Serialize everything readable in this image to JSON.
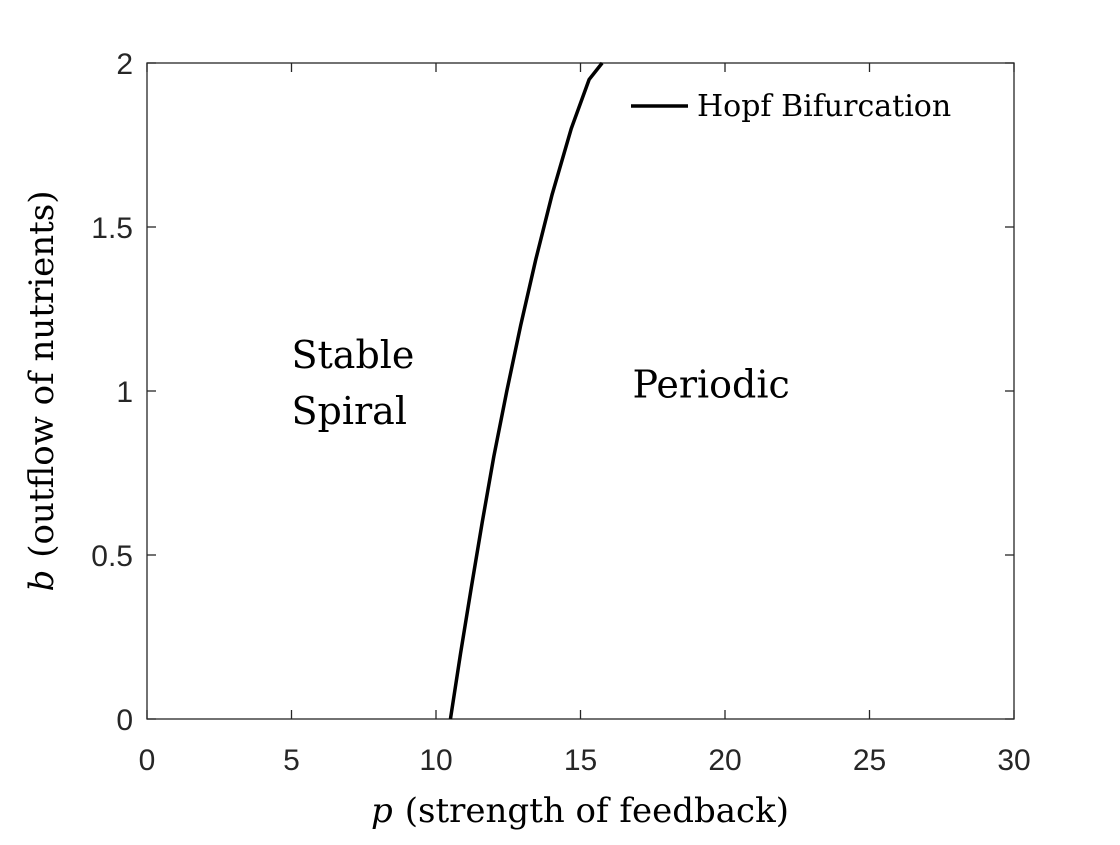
{
  "chart_data": {
    "type": "line",
    "xlabel_var": "p",
    "xlabel_text": "(strength of feedback)",
    "ylabel_var": "b",
    "ylabel_text": "(outflow of nutrients)",
    "xlim": [
      0,
      30
    ],
    "ylim": [
      0,
      2
    ],
    "xticks": [
      0,
      5,
      10,
      15,
      20,
      25,
      30
    ],
    "xtick_labels": [
      "0",
      "5",
      "10",
      "15",
      "20",
      "25",
      "30"
    ],
    "yticks": [
      0,
      0.5,
      1,
      1.5,
      2
    ],
    "ytick_labels": [
      "0",
      "0.5",
      "1",
      "1.5",
      "2"
    ],
    "grid": false,
    "legend_position": "top-right",
    "series": [
      {
        "name": "Hopf Bifurcation",
        "color": "#000000",
        "x": [
          10.5,
          10.85,
          11.22,
          11.6,
          12.0,
          12.45,
          12.93,
          13.45,
          14.02,
          14.68,
          15.3,
          15.75
        ],
        "y": [
          0,
          0.2,
          0.4,
          0.6,
          0.8,
          1.0,
          1.2,
          1.4,
          1.6,
          1.8,
          1.95,
          2.0
        ]
      }
    ],
    "annotations": [
      {
        "lines": [
          "Stable",
          "Spiral"
        ],
        "x": 5.0,
        "y": 1.07
      },
      {
        "lines": [
          "Periodic"
        ],
        "x": 16.8,
        "y": 0.98
      }
    ]
  }
}
